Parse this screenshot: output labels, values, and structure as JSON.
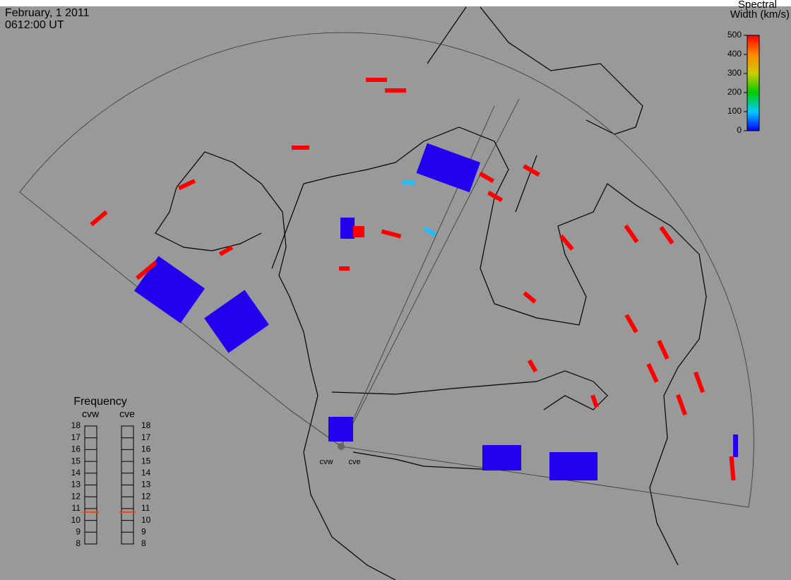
{
  "header": {
    "date": "February, 1 2011",
    "time": "0612:00 UT"
  },
  "colorbar": {
    "title_line1": "Spectral",
    "title_line2": "Width (km/s)",
    "lim": [
      0,
      500
    ],
    "ticks": [
      0,
      100,
      200,
      300,
      400,
      500
    ]
  },
  "frequency": {
    "title": "Frequency",
    "lim": [
      8,
      18
    ],
    "ticks": [
      8,
      9,
      10,
      11,
      12,
      13,
      14,
      15,
      16,
      17,
      18
    ],
    "radars": [
      {
        "name": "cvw",
        "value": 10.7,
        "color": "#ff4400"
      },
      {
        "name": "cve",
        "value": 10.7,
        "color": "#ff4400"
      }
    ]
  },
  "sites": [
    "cvw",
    "cve"
  ]
}
